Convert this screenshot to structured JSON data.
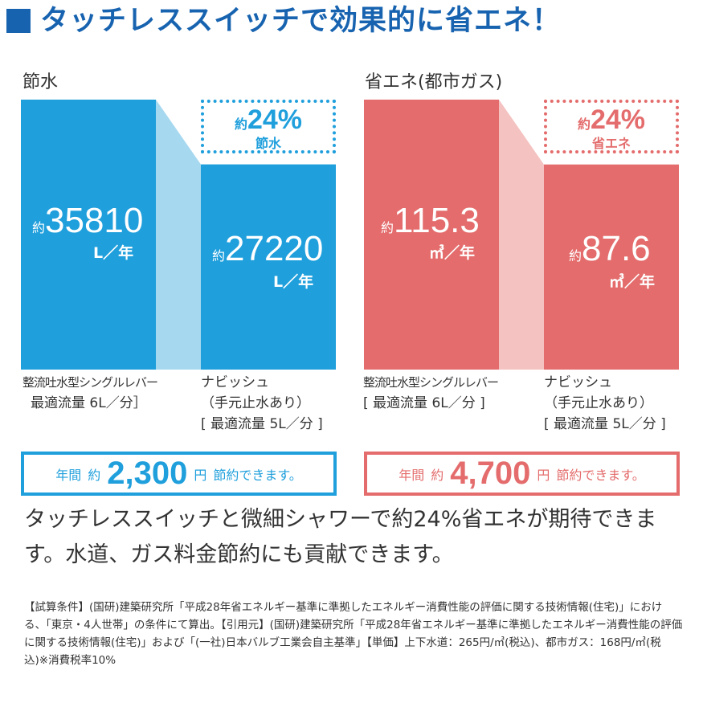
{
  "title": "タッチレススイッチで効果的に省エネ！",
  "colors": {
    "title": "#1763b0",
    "water_bar": "#1f9fdc",
    "water_connector": "#a6d8f0",
    "gas_bar": "#e46c6c",
    "gas_connector": "#f4c2c0"
  },
  "chart_data": [
    {
      "type": "bar",
      "title": "節水",
      "categories": [
        "整流吐水型シングルレバー 最適流量 6L／分",
        "ナビッシュ（手元止水あり）[ 最適流量 5L／分 ]"
      ],
      "values": [
        35810,
        27220
      ],
      "unit": "L／年",
      "reduction_label": "約24% 節水"
    },
    {
      "type": "bar",
      "title": "省エネ(都市ガス)",
      "categories": [
        "整流吐水型シングルレバー [ 最適流量 6L／分 ]",
        "ナビッシュ（手元止水あり）[ 最適流量 5L／分 ]"
      ],
      "values": [
        115.3,
        87.6
      ],
      "unit": "㎥／年",
      "reduction_label": "約24% 省エネ"
    }
  ],
  "water": {
    "title": "節水",
    "bar1": {
      "prefix": "約",
      "value": "35810",
      "unit": "L／年"
    },
    "bar2": {
      "prefix": "約",
      "value": "27220",
      "unit": "L／年"
    },
    "save_prefix": "約",
    "save_value": "24%",
    "save_label": "節水",
    "cat1_line1": "整流吐水型シングルレバー",
    "cat1_line2": "最適流量 6L／分］",
    "cat2_line1": "ナビッシュ",
    "cat2_line2": "（手元止水あり）",
    "cat2_line3": "[ 最適流量 5L／分 ]",
    "annual_prefix": "年間",
    "annual_approx": "約",
    "annual_value": "2,300",
    "annual_unit": "円",
    "annual_suffix": "節約できます。"
  },
  "gas": {
    "title": "省エネ(都市ガス)",
    "bar1": {
      "prefix": "約",
      "value": "115.3",
      "unit": "㎥／年"
    },
    "bar2": {
      "prefix": "約",
      "value": "87.6",
      "unit": "㎥／年"
    },
    "save_prefix": "約",
    "save_value": "24%",
    "save_label": "省エネ",
    "cat1_line1": "整流吐水型シングルレバー",
    "cat1_line2": "[ 最適流量 6L／分 ]",
    "cat2_line1": "ナビッシュ",
    "cat2_line2": "（手元止水あり）",
    "cat2_line3": "[ 最適流量 5L／分 ]",
    "annual_prefix": "年間",
    "annual_approx": "約",
    "annual_value": "4,700",
    "annual_unit": "円",
    "annual_suffix": "節約できます。"
  },
  "summary": "タッチレススイッチと微細シャワーで約24%省エネが期待できます。水道、ガス料金節約にも貢献できます。",
  "footnote": "【試算条件】(国研)建築研究所「平成28年省エネルギー基準に準拠したエネルギー消費性能の評価に関する技術情報(住宅)」における、「東京・4人世帯」の条件にて算出。【引用元】(国研)建築研究所「平成28年省エネルギー基準に準拠したエネルギー消費性能の評価に関する技術情報(住宅)」および「(一社)日本バルブ工業会自主基準」【単価】上下水道：265円/㎥(税込)、都市ガス：168円/㎥(税込)※消費税率10%"
}
